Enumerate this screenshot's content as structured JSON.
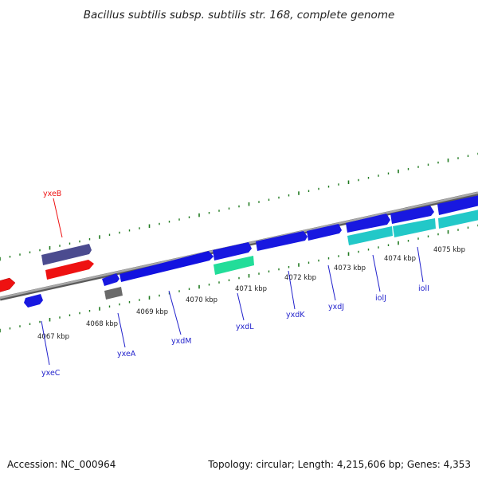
{
  "title": "Bacillus subtilis subsp. subtilis str. 168, complete genome",
  "footer": {
    "accession": "Accession: NC_000964",
    "summary": "Topology: circular; Length: 4,215,606 bp; Genes: 4,353"
  },
  "colors": {
    "forward_strand": "#2a2ad0",
    "reverse_strand": "#d81818",
    "cds_forward": "#1010e0",
    "rna_red": "#ee1111",
    "purple": "#4b4b8f",
    "gray_gene": "#6a6a6a",
    "green_gene": "#22dd99",
    "cyan_gene": "#22c8c8",
    "tick_green": "#1f7a1f",
    "backbone": "#8c8c8c"
  },
  "kbp_labels": [
    "4067 kbp",
    "4068 kbp",
    "4069 kbp",
    "4070 kbp",
    "4071 kbp",
    "4072 kbp",
    "4073 kbp",
    "4074 kbp",
    "4075 kbp"
  ],
  "genes": [
    {
      "name": "yxeB",
      "color": "#ee1111"
    },
    {
      "name": "yxeC",
      "color": "#2a2ad0"
    },
    {
      "name": "yxeA",
      "color": "#2a2ad0"
    },
    {
      "name": "yxdM",
      "color": "#2a2ad0"
    },
    {
      "name": "yxdL",
      "color": "#2a2ad0"
    },
    {
      "name": "yxdK",
      "color": "#2a2ad0"
    },
    {
      "name": "yxdJ",
      "color": "#2a2ad0"
    },
    {
      "name": "iolJ",
      "color": "#2a2ad0"
    },
    {
      "name": "iolI",
      "color": "#2a2ad0"
    }
  ]
}
